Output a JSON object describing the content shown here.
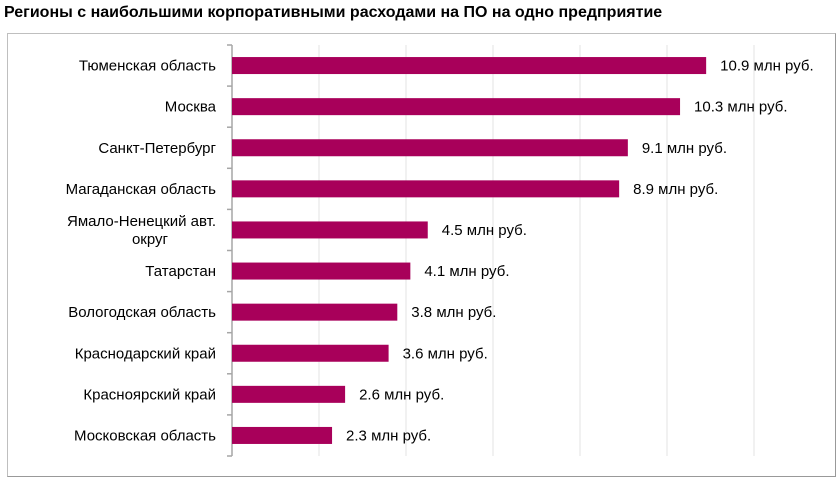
{
  "chart_data": {
    "type": "bar",
    "orientation": "horizontal",
    "title": "Регионы с наибольшими корпоративными расходами на ПО на одно предприятие",
    "categories": [
      "Тюменская область",
      "Москва",
      "Санкт-Петербург",
      "Магаданская область",
      "Ямало-Ненецкий авт. округ",
      "Татарстан",
      "Вологодская область",
      "Краснодарский край",
      "Красноярский край",
      "Московская область"
    ],
    "values": [
      10.9,
      10.3,
      9.1,
      8.9,
      4.5,
      4.1,
      3.8,
      3.6,
      2.6,
      2.3
    ],
    "data_labels": [
      "10.9 млн руб.",
      "10.3 млн руб.",
      "9.1 млн руб.",
      "8.9 млн руб.",
      "4.5 млн руб.",
      "4.1 млн руб.",
      "3.8 млн руб.",
      "3.6 млн руб.",
      "2.6 млн руб.",
      "2.3 млн руб."
    ],
    "unit": "млн руб.",
    "xlim": [
      0,
      14
    ],
    "grid_step": 2,
    "grid": true,
    "xlabel": "",
    "ylabel": "",
    "bar_color": "#A8005A"
  }
}
